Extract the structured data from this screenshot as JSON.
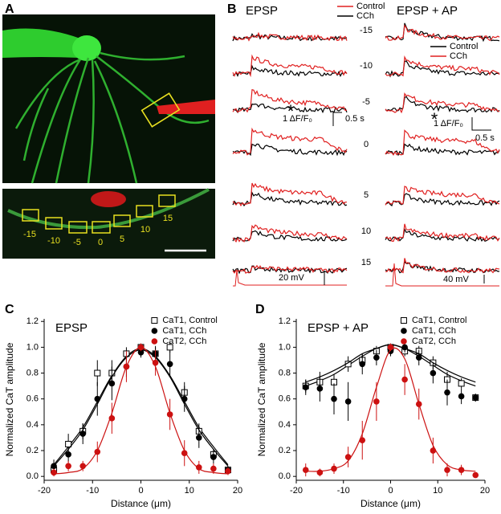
{
  "panel_labels": [
    "A",
    "B",
    "C",
    "D"
  ],
  "panel_a": {
    "roi_labels": [
      "-15",
      "-10",
      "-5",
      "0",
      "5",
      "10",
      "15"
    ]
  },
  "panel_b": {
    "title_left": "EPSP",
    "title_right": "EPSP + AP",
    "legend_left": [
      "Control",
      "CCh"
    ],
    "legend_right": [
      "Control",
      "CCh"
    ],
    "distances": [
      "-15",
      "-10",
      "-5",
      "0",
      "5",
      "10",
      "15"
    ],
    "asterisk": "*",
    "scale_dff": "1 ΔF/F₀",
    "scale_time": "0.5 s",
    "vm_left": "20 mV",
    "vm_right": "40 mV"
  },
  "chart_data": [
    {
      "type": "scatter",
      "title": "EPSP",
      "x_label": "Distance (μm)",
      "y_label": "Normalized CaT amplitude",
      "x": [
        -18,
        -15,
        -12,
        -9,
        -6,
        -3,
        0,
        3,
        6,
        9,
        12,
        15,
        18
      ],
      "xlim": [
        -20,
        20
      ],
      "xticks": [
        -20,
        -10,
        0,
        10,
        20
      ],
      "ylim": [
        -0.03,
        1.22
      ],
      "yticks": [
        {
          "value": 0,
          "label": "0.0"
        },
        0.2,
        0.4,
        0.6,
        0.8,
        {
          "value": 1,
          "label": "1.0"
        },
        1.2
      ],
      "legend": "upper right",
      "series": [
        {
          "name": "CaT1, Control",
          "color": "#000000",
          "marker": "open-square",
          "values": [
            0.05,
            0.25,
            0.35,
            0.8,
            0.8,
            0.95,
            1.0,
            0.95,
            1.0,
            0.65,
            0.35,
            0.17,
            0.05
          ],
          "errors": [
            0.04,
            0.08,
            0.06,
            0.1,
            0.1,
            0.05,
            0.03,
            0.05,
            0.04,
            0.08,
            0.06,
            0.04,
            0.03
          ],
          "fit": [
            0.09,
            0.23,
            0.38,
            0.58,
            0.78,
            0.93,
            0.99,
            0.93,
            0.78,
            0.58,
            0.38,
            0.23,
            0.09
          ]
        },
        {
          "name": "CaT1, CCh",
          "color": "#000000",
          "marker": "circle",
          "values": [
            0.08,
            0.17,
            0.33,
            0.6,
            0.72,
            0.85,
            0.96,
            0.95,
            0.87,
            0.6,
            0.3,
            0.15,
            0.05
          ],
          "errors": [
            0.05,
            0.06,
            0.08,
            0.13,
            0.13,
            0.08,
            0.04,
            0.06,
            0.1,
            0.1,
            0.08,
            0.05,
            0.03
          ],
          "fit": [
            0.08,
            0.21,
            0.36,
            0.56,
            0.77,
            0.92,
            0.98,
            0.92,
            0.77,
            0.56,
            0.36,
            0.21,
            0.08
          ]
        },
        {
          "name": "CaT2, CCh",
          "color": "#cc1111",
          "marker": "circle",
          "values": [
            0.03,
            0.08,
            0.08,
            0.19,
            0.45,
            0.85,
            1.0,
            0.88,
            0.48,
            0.18,
            0.07,
            0.06,
            0.04
          ],
          "errors": [
            0.03,
            0.04,
            0.04,
            0.08,
            0.12,
            0.12,
            0.03,
            0.1,
            0.12,
            0.1,
            0.05,
            0.04,
            0.03
          ],
          "fit": [
            0.02,
            0.03,
            0.06,
            0.2,
            0.49,
            0.85,
            1.0,
            0.85,
            0.49,
            0.2,
            0.06,
            0.03,
            0.02
          ]
        }
      ]
    },
    {
      "type": "scatter",
      "title": "EPSP + AP",
      "x_label": "Distance (μm)",
      "y_label": "Normalized CaT amplitude",
      "x": [
        -18,
        -15,
        -12,
        -9,
        -6,
        -3,
        0,
        3,
        6,
        9,
        12,
        15,
        18
      ],
      "xlim": [
        -20,
        20
      ],
      "xticks": [
        -20,
        -10,
        0,
        10,
        20
      ],
      "ylim": [
        -0.03,
        1.22
      ],
      "yticks": [
        {
          "value": 0,
          "label": "0.0"
        },
        0.2,
        0.4,
        0.6,
        0.8,
        {
          "value": 1,
          "label": "1.0"
        },
        1.2
      ],
      "legend": "upper right",
      "series": [
        {
          "name": "CaT1, Control",
          "color": "#000000",
          "marker": "open-square",
          "values": [
            0.7,
            0.73,
            0.73,
            0.87,
            0.9,
            0.97,
            1.0,
            0.97,
            0.97,
            0.88,
            0.75,
            0.72,
            0.61
          ],
          "errors": [
            0.05,
            0.08,
            0.06,
            0.06,
            0.05,
            0.04,
            0.03,
            0.04,
            0.04,
            0.05,
            0.06,
            0.04,
            0.03
          ],
          "fit": [
            0.7,
            0.74,
            0.79,
            0.86,
            0.93,
            0.99,
            1.02,
            0.99,
            0.93,
            0.86,
            0.79,
            0.74,
            0.7
          ]
        },
        {
          "name": "CaT1, CCh",
          "color": "#000000",
          "marker": "circle",
          "values": [
            0.69,
            0.68,
            0.6,
            0.58,
            0.87,
            0.92,
            0.97,
            1.0,
            0.92,
            0.8,
            0.65,
            0.62,
            0.61
          ],
          "errors": [
            0.06,
            0.1,
            0.12,
            0.15,
            0.08,
            0.06,
            0.04,
            0.04,
            0.06,
            0.08,
            0.1,
            0.06,
            0.03
          ],
          "fit": [
            0.73,
            0.77,
            0.82,
            0.88,
            0.95,
            0.99,
            1.02,
            0.99,
            0.95,
            0.88,
            0.82,
            0.77,
            0.73
          ]
        },
        {
          "name": "CaT2, CCh",
          "color": "#cc1111",
          "marker": "circle",
          "values": [
            0.05,
            0.03,
            0.06,
            0.15,
            0.28,
            0.58,
            1.0,
            0.75,
            0.56,
            0.2,
            0.05,
            0.05,
            0.01
          ],
          "errors": [
            0.05,
            0.03,
            0.04,
            0.08,
            0.15,
            0.15,
            0.03,
            0.12,
            0.12,
            0.1,
            0.05,
            0.04,
            0.02
          ],
          "fit": [
            0.04,
            0.04,
            0.06,
            0.12,
            0.33,
            0.69,
            0.98,
            0.91,
            0.56,
            0.24,
            0.09,
            0.05,
            0.04
          ]
        }
      ]
    }
  ]
}
